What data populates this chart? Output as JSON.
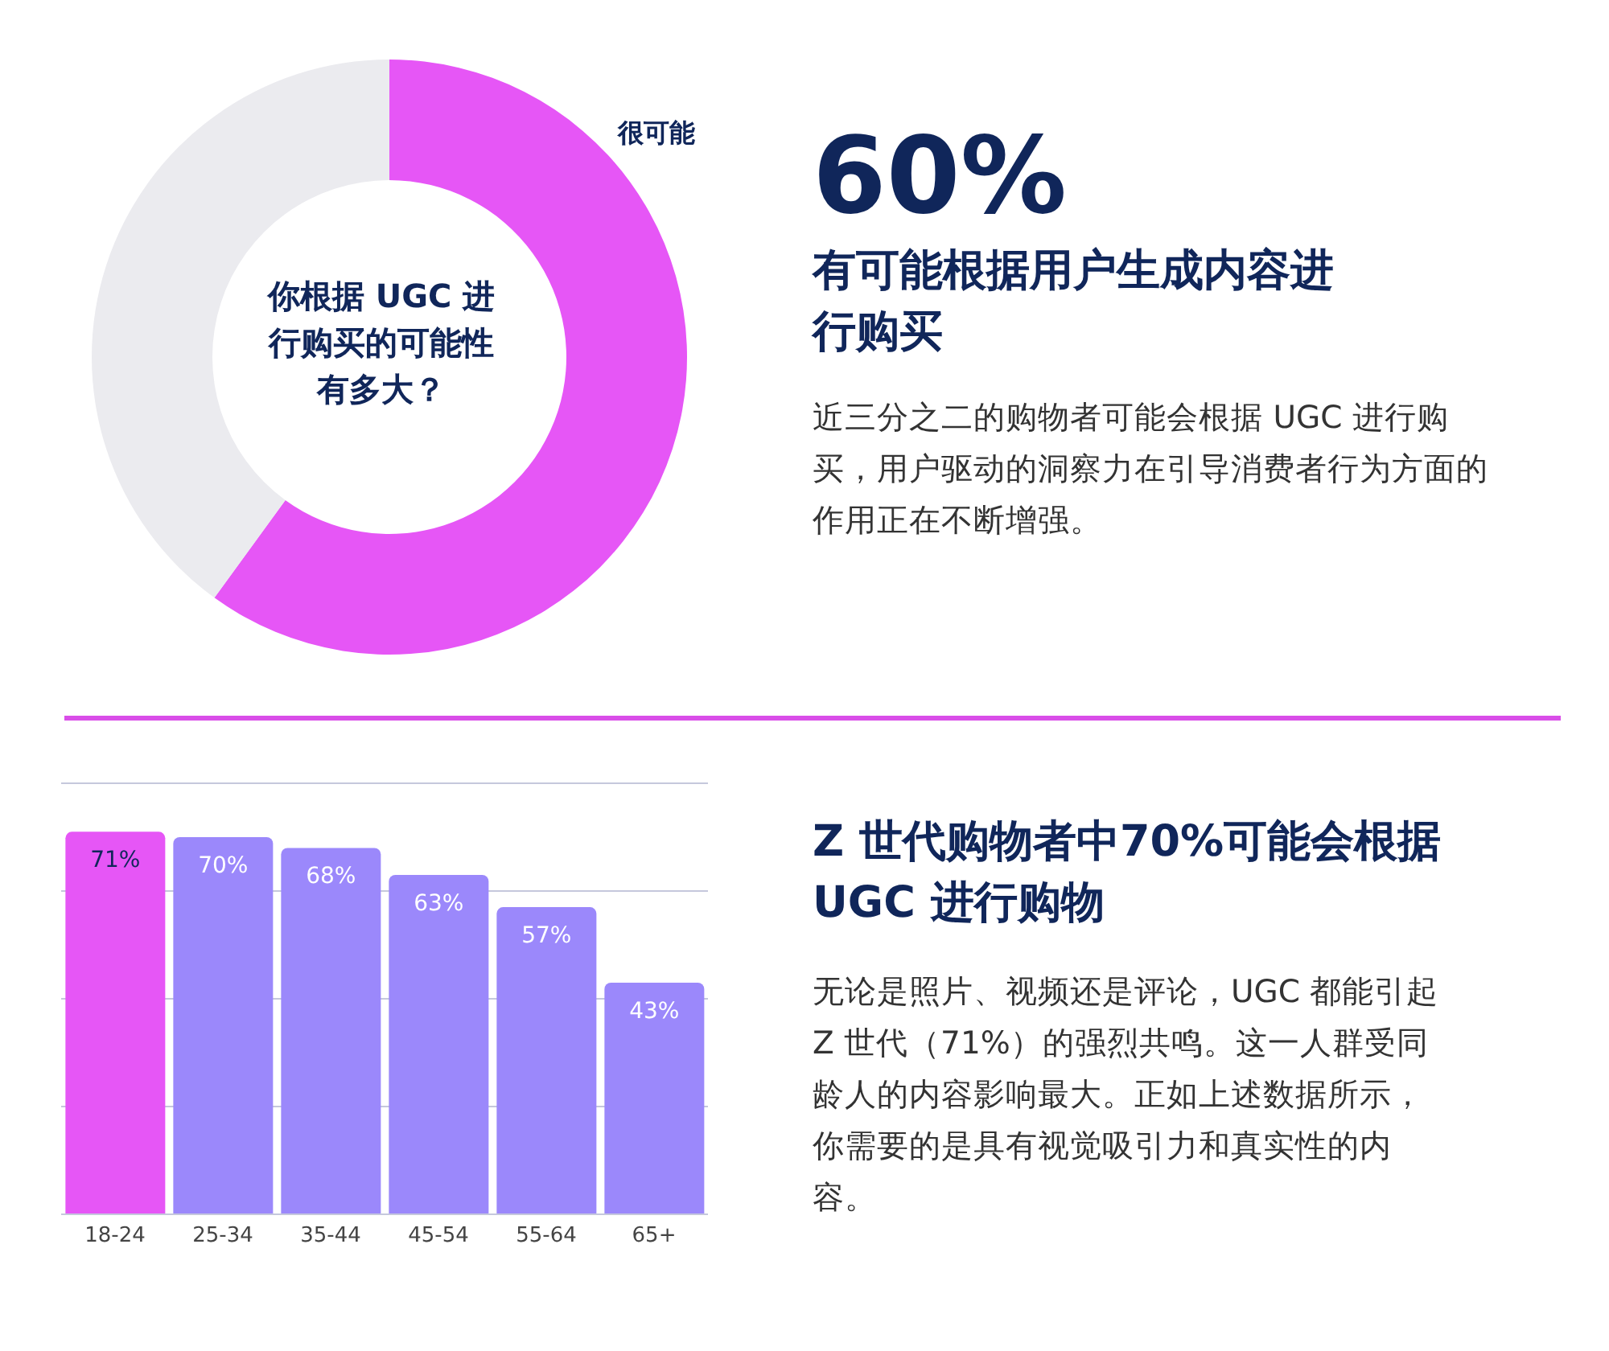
{
  "chart_data": [
    {
      "type": "donut",
      "title": "你根据 UGC 进行购买的可能性有多大？",
      "categories": [
        "很可能",
        null
      ],
      "values": [
        60,
        40
      ],
      "colors": [
        "#e656f6",
        "#ebebef"
      ]
    },
    {
      "type": "other",
      "title": "60%",
      "subtitle": "有可能根据用户生成内容进行购买",
      "annotations": [
        "近三分之二的购物者可能会根据 UGC 进行购买，用户驱动的洞察力在引导消费者行为方面的作用正在不断增强。"
      ]
    },
    {
      "type": "bar",
      "categories": [
        "18-24",
        "25-34",
        "35-44",
        "45-54",
        "55-64",
        "65+"
      ],
      "values": [
        71,
        70,
        68,
        63,
        57,
        43
      ],
      "colors": [
        "#e656f6",
        "#9b88fb",
        "#9b88fb",
        "#9b88fb",
        "#9b88fb",
        "#9b88fb"
      ],
      "value_labels": [
        "71%",
        "70%",
        "68%",
        "63%",
        "57%",
        "43%"
      ],
      "ylim": [
        0,
        80
      ],
      "yticks": [
        0,
        20,
        40,
        60,
        80
      ],
      "grid": "y",
      "tick_labels": "x"
    },
    {
      "type": "other",
      "title": "Z 世代购物者中70%可能会根据 UGC 进行购物",
      "annotations": [
        "无论是照片、视频还是评论，UGC 都能引起 Z 世代（71%）的强烈共鸣。这一人群受同龄人的内容影响最大。正如上述数据所示，你需要的是具有视觉吸引力和真实性的内容。"
      ]
    }
  ]
}
